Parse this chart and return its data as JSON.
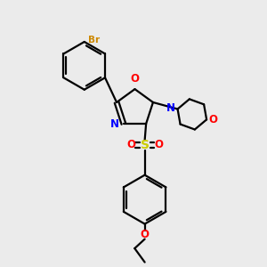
{
  "background_color": "#ebebeb",
  "bond_color": "#000000",
  "nitrogen_color": "#0000ff",
  "oxygen_color": "#ff0000",
  "sulfur_color": "#cccc00",
  "bromine_color": "#cc8800",
  "figsize": [
    3.0,
    3.0
  ],
  "dpi": 100,
  "xlim": [
    0,
    10
  ],
  "ylim": [
    0,
    10
  ]
}
